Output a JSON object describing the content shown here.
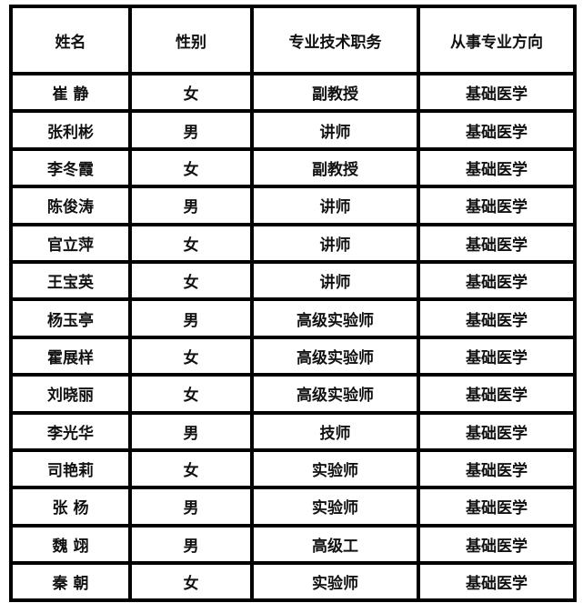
{
  "headers": [
    "姓名",
    "性别",
    "专业技术职务",
    "从事专业方向"
  ],
  "rows": [
    [
      "崔 静",
      "女",
      "副教授",
      "基础医学"
    ],
    [
      "张利彬",
      "男",
      "讲师",
      "基础医学"
    ],
    [
      "李冬霞",
      "女",
      "副教授",
      "基础医学"
    ],
    [
      "陈俊涛",
      "男",
      "讲师",
      "基础医学"
    ],
    [
      "官立萍",
      "女",
      "讲师",
      "基础医学"
    ],
    [
      "王宝英",
      "女",
      "讲师",
      "基础医学"
    ],
    [
      "杨玉亭",
      "男",
      "高级实验师",
      "基础医学"
    ],
    [
      "霍展样",
      "女",
      "高级实验师",
      "基础医学"
    ],
    [
      "刘晓丽",
      "女",
      "高级实验师",
      "基础医学"
    ],
    [
      "李光华",
      "男",
      "技师",
      "基础医学"
    ],
    [
      "司艳莉",
      "女",
      "实验师",
      "基础医学"
    ],
    [
      "张 杨",
      "男",
      "实验师",
      "基础医学"
    ],
    [
      "魏 翊",
      "男",
      "高级工",
      "基础医学"
    ],
    [
      "秦 朝",
      "女",
      "实验师",
      "基础医学"
    ]
  ]
}
